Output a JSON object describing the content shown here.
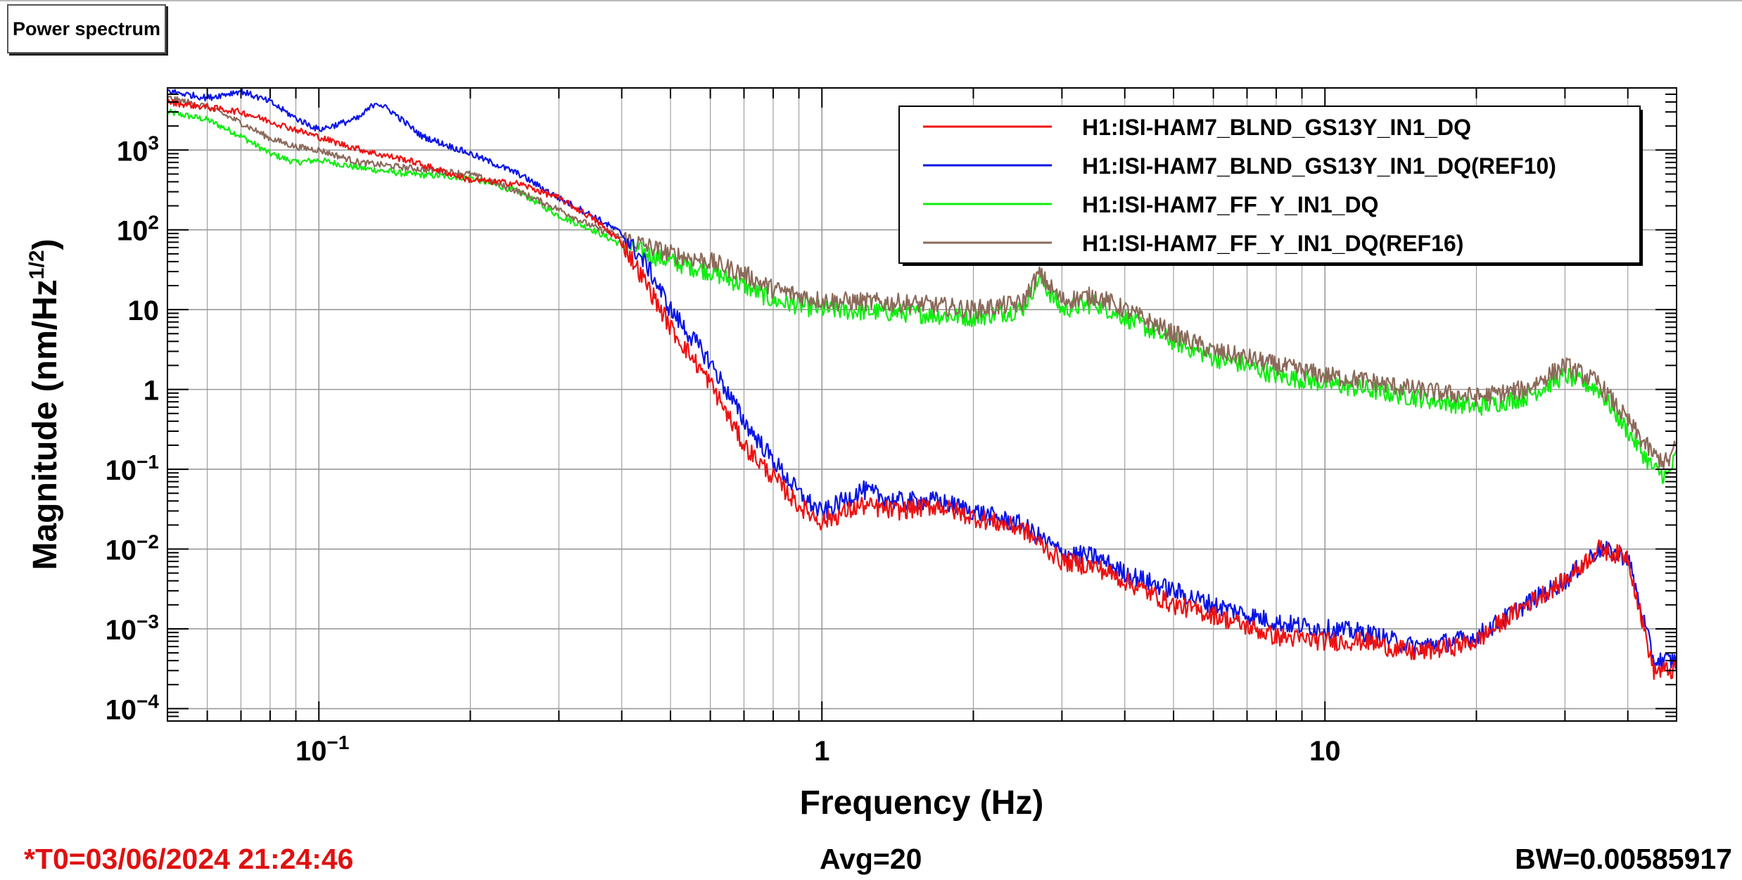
{
  "title_button": "Power spectrum",
  "footer": {
    "t0": "*T0=03/06/2024 21:24:46",
    "avg": "Avg=20",
    "bw": "BW=0.00585917"
  },
  "colors": {
    "red": "#ee1111",
    "blue": "#0a14e6",
    "green": "#10ee10",
    "brown": "#8b6a5a"
  },
  "chart_data": {
    "type": "line",
    "title": "Power spectrum",
    "xlabel": "Frequency (Hz)",
    "ylabel_main": "Magnitude (nm/Hz",
    "ylabel_sup": "1/2",
    "ylabel_close": ")",
    "xscale": "log",
    "yscale": "log",
    "xlim": [
      0.05,
      50
    ],
    "ylim": [
      7e-05,
      6000
    ],
    "grid": true,
    "legend_position": "top-right",
    "xticks": [
      {
        "v": 0.1,
        "base": "10",
        "exp": "−1"
      },
      {
        "v": 1,
        "base": "1",
        "exp": ""
      },
      {
        "v": 10,
        "base": "10",
        "exp": ""
      }
    ],
    "yticks": [
      {
        "v": 1000,
        "base": "10",
        "exp": "3"
      },
      {
        "v": 100,
        "base": "10",
        "exp": "2"
      },
      {
        "v": 10,
        "base": "10",
        "exp": ""
      },
      {
        "v": 1,
        "base": "1",
        "exp": ""
      },
      {
        "v": 0.1,
        "base": "10",
        "exp": "−1"
      },
      {
        "v": 0.01,
        "base": "10",
        "exp": "−2"
      },
      {
        "v": 0.001,
        "base": "10",
        "exp": "−3"
      },
      {
        "v": 0.0001,
        "base": "10",
        "exp": "−4"
      }
    ],
    "series": [
      {
        "name": "H1:ISI-HAM7_BLND_GS13Y_IN1_DQ",
        "color": "#ee1111",
        "points": [
          [
            0.05,
            4000
          ],
          [
            0.07,
            3000
          ],
          [
            0.09,
            1800
          ],
          [
            0.11,
            1200
          ],
          [
            0.13,
            900
          ],
          [
            0.15,
            750
          ],
          [
            0.2,
            420
          ],
          [
            0.25,
            380
          ],
          [
            0.3,
            250
          ],
          [
            0.35,
            140
          ],
          [
            0.4,
            70
          ],
          [
            0.45,
            20
          ],
          [
            0.5,
            6
          ],
          [
            0.6,
            1.2
          ],
          [
            0.7,
            0.2
          ],
          [
            0.8,
            0.08
          ],
          [
            0.9,
            0.035
          ],
          [
            1.0,
            0.022
          ],
          [
            1.2,
            0.035
          ],
          [
            1.4,
            0.03
          ],
          [
            1.7,
            0.035
          ],
          [
            2.0,
            0.025
          ],
          [
            2.5,
            0.018
          ],
          [
            3.0,
            0.007
          ],
          [
            3.5,
            0.006
          ],
          [
            4.0,
            0.004
          ],
          [
            5.0,
            0.002
          ],
          [
            6.0,
            0.0015
          ],
          [
            8.0,
            0.0008
          ],
          [
            10,
            0.0007
          ],
          [
            12,
            0.0007
          ],
          [
            15,
            0.0005
          ],
          [
            18,
            0.0006
          ],
          [
            20,
            0.0007
          ],
          [
            25,
            0.002
          ],
          [
            30,
            0.004
          ],
          [
            35,
            0.01
          ],
          [
            40,
            0.008
          ],
          [
            45,
            0.0003
          ],
          [
            50,
            0.0003
          ]
        ]
      },
      {
        "name": "H1:ISI-HAM7_BLND_GS13Y_IN1_DQ(REF10)",
        "color": "#0a14e6",
        "points": [
          [
            0.05,
            5500
          ],
          [
            0.06,
            4500
          ],
          [
            0.07,
            5500
          ],
          [
            0.08,
            4000
          ],
          [
            0.09,
            2500
          ],
          [
            0.1,
            1800
          ],
          [
            0.12,
            2500
          ],
          [
            0.13,
            4000
          ],
          [
            0.14,
            3000
          ],
          [
            0.16,
            1500
          ],
          [
            0.2,
            900
          ],
          [
            0.25,
            500
          ],
          [
            0.3,
            250
          ],
          [
            0.35,
            150
          ],
          [
            0.4,
            90
          ],
          [
            0.45,
            35
          ],
          [
            0.5,
            10
          ],
          [
            0.6,
            2.2
          ],
          [
            0.7,
            0.4
          ],
          [
            0.8,
            0.13
          ],
          [
            0.9,
            0.05
          ],
          [
            1.0,
            0.028
          ],
          [
            1.2,
            0.055
          ],
          [
            1.4,
            0.04
          ],
          [
            1.7,
            0.04
          ],
          [
            2.0,
            0.03
          ],
          [
            2.5,
            0.02
          ],
          [
            3.0,
            0.009
          ],
          [
            3.5,
            0.008
          ],
          [
            4.0,
            0.005
          ],
          [
            5.0,
            0.003
          ],
          [
            6.0,
            0.002
          ],
          [
            8.0,
            0.0012
          ],
          [
            10,
            0.001
          ],
          [
            12,
            0.0009
          ],
          [
            15,
            0.0006
          ],
          [
            18,
            0.0007
          ],
          [
            20,
            0.0008
          ],
          [
            25,
            0.002
          ],
          [
            30,
            0.004
          ],
          [
            35,
            0.01
          ],
          [
            40,
            0.008
          ],
          [
            45,
            0.0004
          ],
          [
            50,
            0.0004
          ]
        ]
      },
      {
        "name": "H1:ISI-HAM7_FF_Y_IN1_DQ",
        "color": "#10ee10",
        "points": [
          [
            0.05,
            3000
          ],
          [
            0.06,
            2400
          ],
          [
            0.07,
            1500
          ],
          [
            0.08,
            900
          ],
          [
            0.09,
            700
          ],
          [
            0.1,
            750
          ],
          [
            0.12,
            600
          ],
          [
            0.15,
            500
          ],
          [
            0.2,
            450
          ],
          [
            0.25,
            300
          ],
          [
            0.3,
            150
          ],
          [
            0.35,
            100
          ],
          [
            0.4,
            65
          ],
          [
            0.5,
            40
          ],
          [
            0.6,
            30
          ],
          [
            0.7,
            20
          ],
          [
            0.8,
            13
          ],
          [
            1.0,
            10
          ],
          [
            1.5,
            9
          ],
          [
            2.0,
            8
          ],
          [
            2.5,
            10
          ],
          [
            2.7,
            25
          ],
          [
            3.0,
            10
          ],
          [
            3.5,
            12
          ],
          [
            4.0,
            8
          ],
          [
            5.0,
            4
          ],
          [
            6.0,
            2.5
          ],
          [
            7.0,
            2
          ],
          [
            8.0,
            1.5
          ],
          [
            10,
            1.2
          ],
          [
            12,
            1
          ],
          [
            15,
            0.8
          ],
          [
            20,
            0.6
          ],
          [
            25,
            0.8
          ],
          [
            30,
            1.5
          ],
          [
            35,
            1
          ],
          [
            40,
            0.3
          ],
          [
            45,
            0.1
          ],
          [
            48,
            0.08
          ],
          [
            50,
            0.15
          ]
        ]
      },
      {
        "name": "H1:ISI-HAM7_FF_Y_IN1_DQ(REF16)",
        "color": "#8b6a5a",
        "points": [
          [
            0.05,
            4500
          ],
          [
            0.06,
            3500
          ],
          [
            0.07,
            2200
          ],
          [
            0.08,
            1400
          ],
          [
            0.09,
            1100
          ],
          [
            0.1,
            1000
          ],
          [
            0.12,
            700
          ],
          [
            0.15,
            600
          ],
          [
            0.2,
            500
          ],
          [
            0.25,
            300
          ],
          [
            0.3,
            180
          ],
          [
            0.35,
            110
          ],
          [
            0.4,
            80
          ],
          [
            0.5,
            50
          ],
          [
            0.6,
            40
          ],
          [
            0.7,
            28
          ],
          [
            0.8,
            18
          ],
          [
            1.0,
            13
          ],
          [
            1.5,
            12
          ],
          [
            2.0,
            10
          ],
          [
            2.5,
            12
          ],
          [
            2.7,
            28
          ],
          [
            3.0,
            13
          ],
          [
            3.5,
            15
          ],
          [
            4.0,
            10
          ],
          [
            5.0,
            5
          ],
          [
            6.0,
            3
          ],
          [
            7.0,
            2.5
          ],
          [
            8.0,
            2
          ],
          [
            10,
            1.5
          ],
          [
            12,
            1.3
          ],
          [
            15,
            1
          ],
          [
            20,
            0.8
          ],
          [
            25,
            1
          ],
          [
            30,
            2
          ],
          [
            35,
            1.2
          ],
          [
            40,
            0.4
          ],
          [
            45,
            0.15
          ],
          [
            48,
            0.12
          ],
          [
            50,
            0.2
          ]
        ]
      }
    ]
  }
}
